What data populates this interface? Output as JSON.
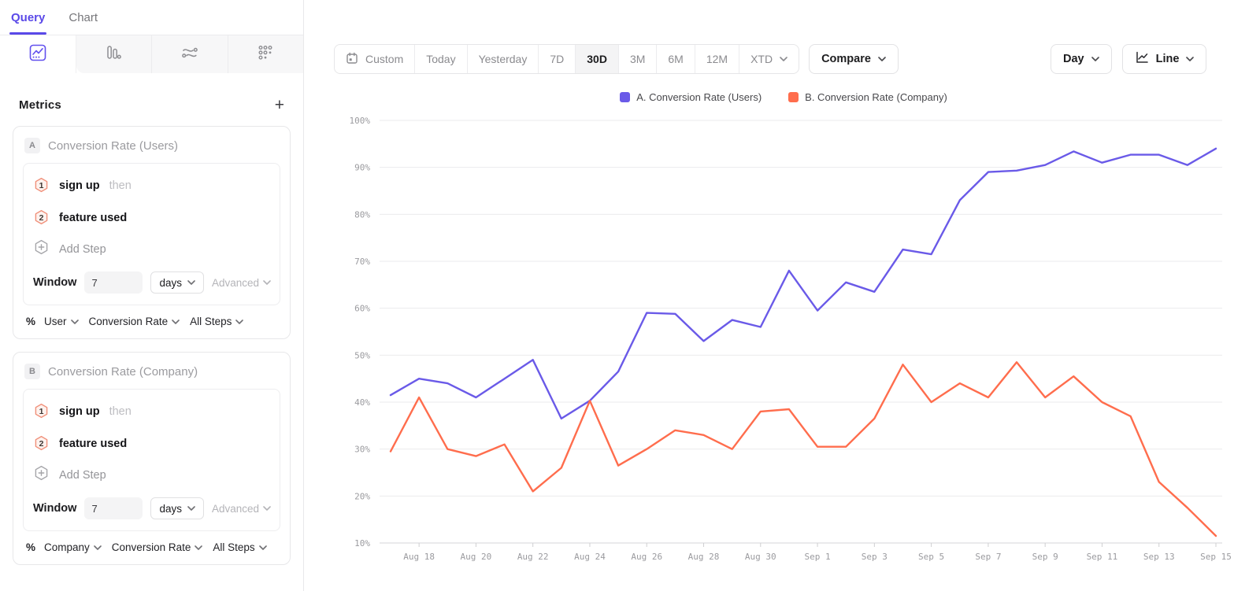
{
  "colors": {
    "accent_purple": "#5A49E8",
    "series_a": "#6A5AE8",
    "series_b": "#FF6D4D"
  },
  "sidebar": {
    "tabs": [
      {
        "label": "Query"
      },
      {
        "label": "Chart"
      }
    ],
    "chart_type_tabs": [
      {
        "icon": "line-chart-icon",
        "active": true
      },
      {
        "icon": "bar-chart-icon",
        "active": false
      },
      {
        "icon": "flows-icon",
        "active": false
      },
      {
        "icon": "retention-icon",
        "active": false
      }
    ],
    "metrics": {
      "title": "Metrics",
      "add_button": "+"
    },
    "metric_cards": [
      {
        "badge": "A",
        "title": "Conversion Rate (Users)",
        "steps": [
          {
            "num": "1",
            "event": "sign up",
            "suffix": "then"
          },
          {
            "num": "2",
            "event": "feature used",
            "suffix": ""
          }
        ],
        "add_step": "Add Step",
        "window_label": "Window",
        "window_value": "7",
        "window_unit": "days",
        "advanced": "Advanced",
        "measure_prefix": "%",
        "measure_entity": "User",
        "measure_metric": "Conversion Rate",
        "measure_steps": "All Steps"
      },
      {
        "badge": "B",
        "title": "Conversion Rate (Company)",
        "steps": [
          {
            "num": "1",
            "event": "sign up",
            "suffix": "then"
          },
          {
            "num": "2",
            "event": "feature used",
            "suffix": ""
          }
        ],
        "add_step": "Add Step",
        "window_label": "Window",
        "window_value": "7",
        "window_unit": "days",
        "advanced": "Advanced",
        "measure_prefix": "%",
        "measure_entity": "Company",
        "measure_metric": "Conversion Rate",
        "measure_steps": "All Steps"
      }
    ]
  },
  "toolbar": {
    "date_ranges": [
      {
        "label": "Custom",
        "icon": "calendar-icon"
      },
      {
        "label": "Today"
      },
      {
        "label": "Yesterday"
      },
      {
        "label": "7D"
      },
      {
        "label": "30D",
        "active": true
      },
      {
        "label": "3M"
      },
      {
        "label": "6M"
      },
      {
        "label": "12M"
      },
      {
        "label": "XTD",
        "chevron": true
      }
    ],
    "compare": "Compare",
    "granularity": "Day",
    "chart_style": "Line"
  },
  "legend": [
    {
      "label": "A. Conversion Rate (Users)",
      "color": "#6A5AE8"
    },
    {
      "label": "B. Conversion Rate (Company)",
      "color": "#FF6D4D"
    }
  ],
  "chart_data": {
    "type": "line",
    "x": [
      "Aug 17",
      "Aug 18",
      "Aug 19",
      "Aug 20",
      "Aug 21",
      "Aug 22",
      "Aug 23",
      "Aug 24",
      "Aug 25",
      "Aug 26",
      "Aug 27",
      "Aug 28",
      "Aug 29",
      "Aug 30",
      "Aug 31",
      "Sep 1",
      "Sep 2",
      "Sep 3",
      "Sep 4",
      "Sep 5",
      "Sep 6",
      "Sep 7",
      "Sep 8",
      "Sep 9",
      "Sep 10",
      "Sep 11",
      "Sep 12",
      "Sep 13",
      "Sep 14",
      "Sep 15"
    ],
    "x_tick_labels": [
      "Aug 18",
      "Aug 20",
      "Aug 22",
      "Aug 24",
      "Aug 26",
      "Aug 28",
      "Aug 30",
      "Sep 1",
      "Sep 3",
      "Sep 5",
      "Sep 7",
      "Sep 9",
      "Sep 11",
      "Sep 13",
      "Sep 15"
    ],
    "series": [
      {
        "name": "A. Conversion Rate (Users)",
        "color": "#6A5AE8",
        "values": [
          41.5,
          45,
          44,
          41,
          45,
          49,
          36.5,
          40.3,
          46.5,
          59,
          58.8,
          53,
          57.5,
          56,
          68,
          59.5,
          65.5,
          63.5,
          72.5,
          71.5,
          83,
          89,
          89.3,
          90.5,
          93.4,
          91,
          92.7,
          92.7,
          90.5,
          94
        ]
      },
      {
        "name": "B. Conversion Rate (Company)",
        "color": "#FF6D4D",
        "values": [
          29.5,
          41,
          30,
          28.5,
          31,
          21,
          26,
          40.3,
          26.5,
          30,
          34,
          33,
          30,
          38,
          38.5,
          30.5,
          30.5,
          36.5,
          48,
          40,
          44,
          41,
          48.5,
          41,
          45.5,
          40,
          37,
          23,
          17.5,
          11.5
        ]
      }
    ],
    "ylim": [
      10,
      100
    ],
    "y_tick_step": 10,
    "y_tick_suffix": "%",
    "grid": true,
    "legend_position": "top-center"
  }
}
